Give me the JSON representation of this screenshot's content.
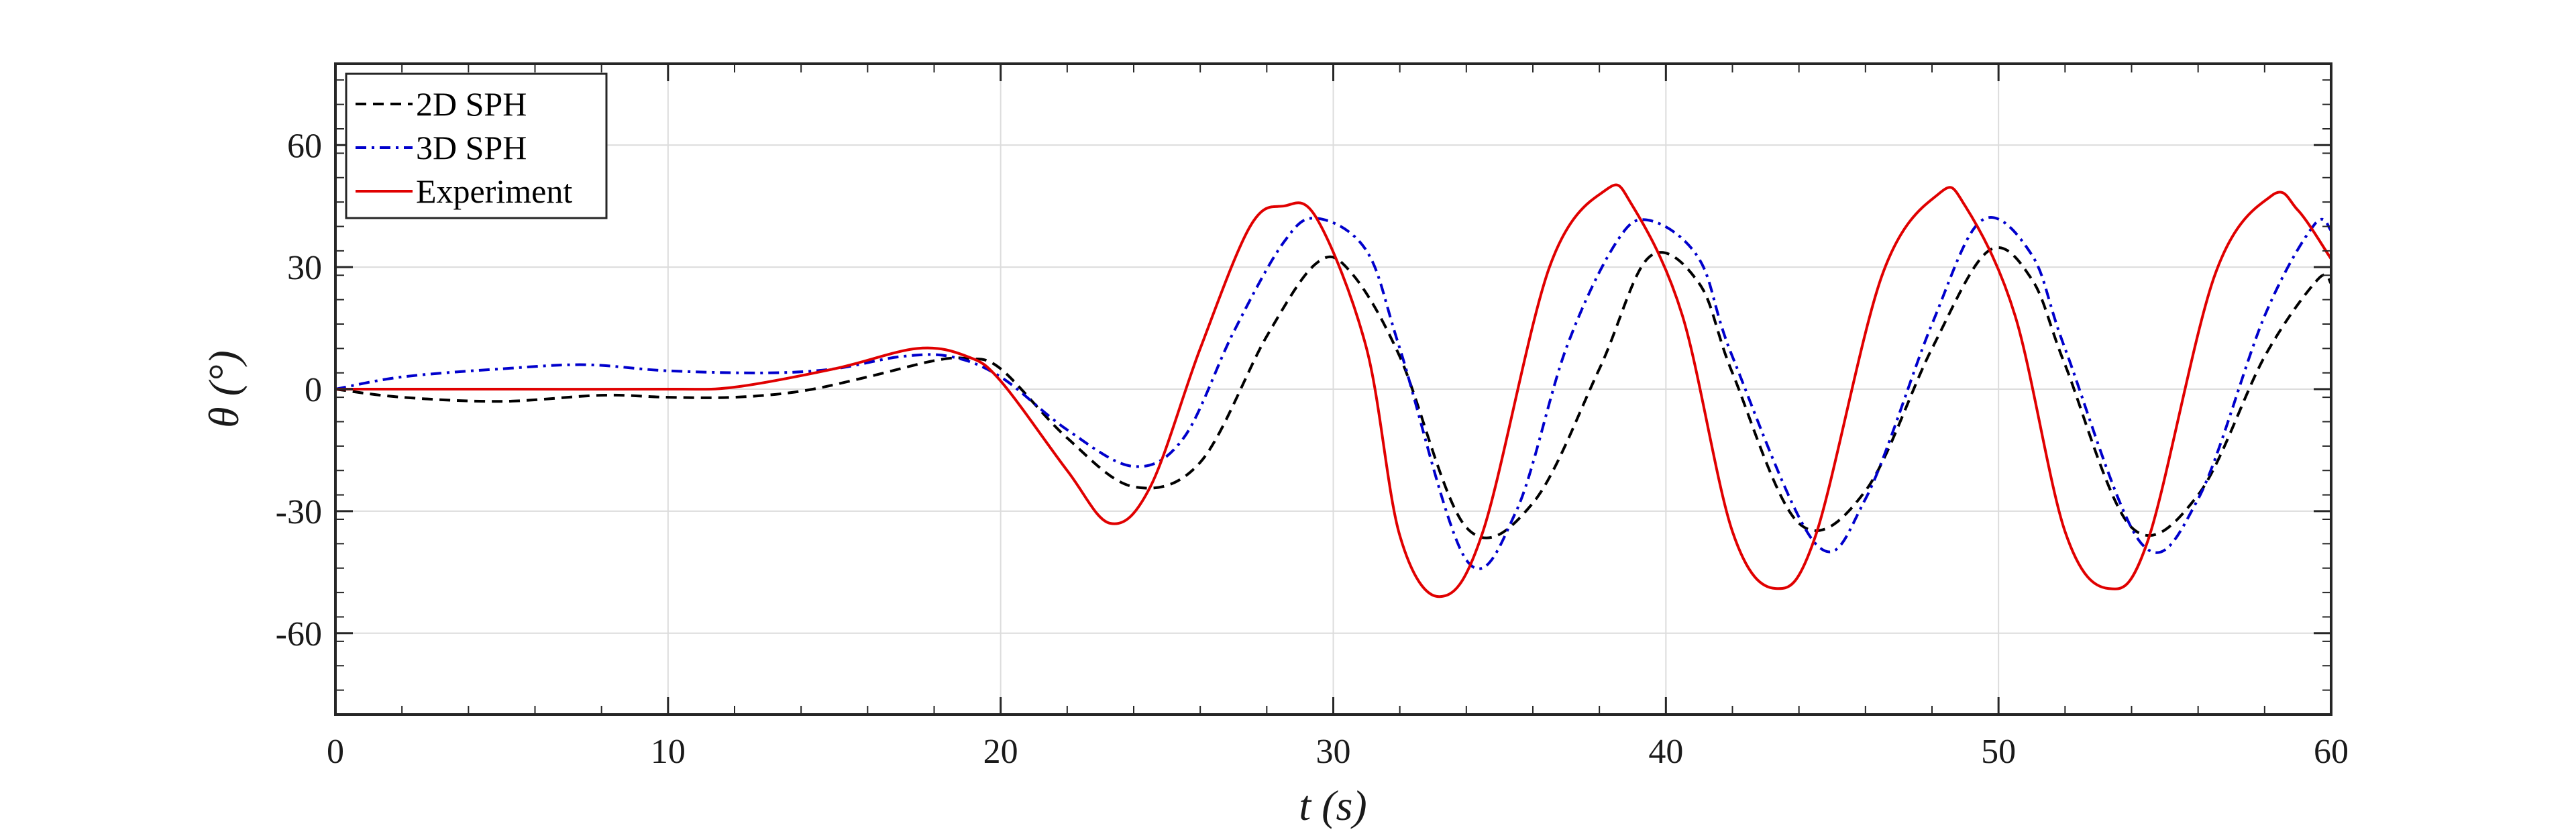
{
  "chart_data": {
    "type": "line",
    "title": "",
    "xlabel": "t (s)",
    "ylabel": "θ (°)",
    "xlim": [
      0,
      60
    ],
    "ylim": [
      -80,
      80
    ],
    "xticks": [
      0,
      10,
      20,
      30,
      40,
      50,
      60
    ],
    "yticks": [
      -60,
      -30,
      0,
      30,
      60
    ],
    "ytick_labels": [
      "-60",
      "-30",
      "0",
      "30",
      "60"
    ],
    "grid": true,
    "legend_position": "top-left",
    "series": [
      {
        "name": "2D SPH",
        "color": "#000000",
        "line_style": "dashed",
        "x": [
          0,
          2,
          5,
          8,
          10,
          12,
          14,
          16,
          18,
          19,
          20,
          22,
          24,
          26,
          28,
          29.5,
          30.5,
          32,
          34,
          36,
          38,
          39.5,
          41,
          42,
          44,
          46,
          48,
          49.7,
          51,
          52,
          54,
          56,
          58,
          59.6,
          60
        ],
        "y": [
          0,
          -2,
          -3,
          -1.5,
          -2,
          -2,
          -0.5,
          3,
          7,
          7.5,
          5,
          -12,
          -24,
          -18,
          13,
          31,
          29,
          8,
          -34,
          -28,
          5,
          32.5,
          26,
          4,
          -33,
          -25,
          10,
          34,
          27,
          6,
          -34,
          -26,
          8,
          27,
          26
        ]
      },
      {
        "name": "3D SPH",
        "color": "#0000cc",
        "line_style": "dashdot",
        "x": [
          0,
          2,
          5,
          7.5,
          10,
          13,
          15,
          17,
          18.5,
          20,
          22,
          24,
          25.5,
          27,
          28.5,
          29.5,
          31,
          32,
          34,
          35.5,
          37,
          38.5,
          39.5,
          41,
          42,
          44.5,
          46,
          48,
          49.5,
          51,
          52,
          54.3,
          56,
          58,
          59.5,
          60
        ],
        "y": [
          0,
          3,
          5,
          6,
          4.5,
          4,
          5,
          8,
          8,
          3,
          -10,
          -19,
          -12,
          14,
          36,
          42,
          34,
          10,
          -42,
          -30,
          10,
          36,
          41.5,
          32,
          8,
          -38,
          -27,
          16,
          41.5,
          33,
          10,
          -38,
          -27,
          18,
          40.5,
          39
        ]
      },
      {
        "name": "Experiment",
        "color": "#e00000",
        "line_style": "solid",
        "x": [
          0,
          5,
          10,
          12,
          15,
          17.5,
          19,
          20,
          22,
          23.3,
          24.5,
          26,
          27.5,
          28.5,
          29.5,
          31,
          32,
          33.2,
          34.5,
          36.5,
          38.2,
          39,
          40.5,
          42,
          43.3,
          44.5,
          46.5,
          48.2,
          49,
          50.5,
          52,
          53.3,
          54.5,
          56.5,
          58.2,
          59,
          60
        ],
        "y": [
          0,
          0,
          0,
          0.5,
          5,
          10,
          8,
          2,
          -20,
          -33,
          -24,
          10,
          40,
          45,
          42,
          10,
          -36,
          -51,
          -35,
          30,
          49,
          45,
          18,
          -35,
          -49,
          -36,
          28,
          48,
          45,
          18,
          -35,
          -49,
          -37,
          28,
          47.5,
          44,
          32
        ]
      }
    ]
  }
}
